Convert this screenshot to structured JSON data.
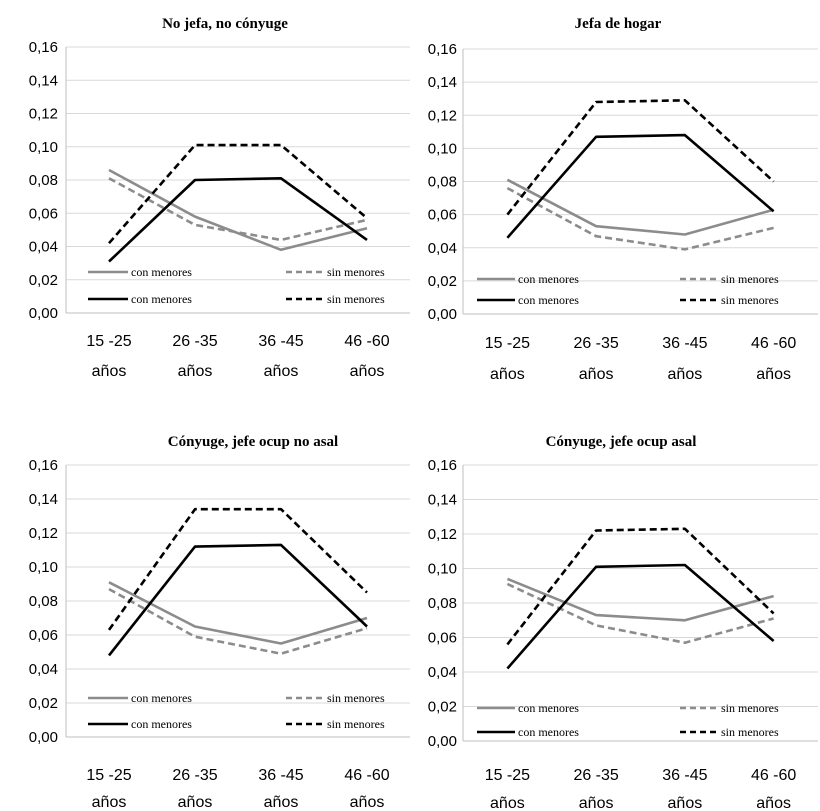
{
  "chart_data": [
    {
      "type": "line",
      "title": "No jefa, no cónyuge",
      "categories": [
        [
          "15 -25",
          "años"
        ],
        [
          "26 -35",
          "años"
        ],
        [
          "36 -45",
          "años"
        ],
        [
          "46 -60",
          "años"
        ]
      ],
      "ylim": [
        0,
        0.16
      ],
      "yticks": [
        "0,00",
        "0,02",
        "0,04",
        "0,06",
        "0,08",
        "0,10",
        "0,12",
        "0,14",
        "0,16"
      ],
      "grid": true,
      "legend_position": "bottom",
      "series": [
        {
          "name": "con menores",
          "color": "#8c8c8c",
          "dash": "solid",
          "values": [
            0.086,
            0.058,
            0.038,
            0.051
          ]
        },
        {
          "name": "sin menores",
          "color": "#8c8c8c",
          "dash": "dashed",
          "values": [
            0.081,
            0.053,
            0.044,
            0.056
          ]
        },
        {
          "name": "con menores",
          "color": "#000000",
          "dash": "solid",
          "values": [
            0.031,
            0.08,
            0.081,
            0.044
          ]
        },
        {
          "name": "sin menores",
          "color": "#000000",
          "dash": "dashed",
          "values": [
            0.042,
            0.101,
            0.101,
            0.057
          ]
        }
      ]
    },
    {
      "type": "line",
      "title": "Jefa de hogar",
      "categories": [
        [
          "15 -25",
          "años"
        ],
        [
          "26 -35",
          "años"
        ],
        [
          "36 -45",
          "años"
        ],
        [
          "46 -60",
          "años"
        ]
      ],
      "ylim": [
        0,
        0.16
      ],
      "yticks": [
        "0,00",
        "0,02",
        "0,04",
        "0,06",
        "0,08",
        "0,10",
        "0,12",
        "0,14",
        "0,16"
      ],
      "grid": true,
      "legend_position": "bottom",
      "series": [
        {
          "name": "con menores",
          "color": "#8c8c8c",
          "dash": "solid",
          "values": [
            0.081,
            0.053,
            0.048,
            0.063
          ]
        },
        {
          "name": "sin menores",
          "color": "#8c8c8c",
          "dash": "dashed",
          "values": [
            0.076,
            0.047,
            0.039,
            0.052
          ]
        },
        {
          "name": "con menores",
          "color": "#000000",
          "dash": "solid",
          "values": [
            0.046,
            0.107,
            0.108,
            0.062
          ]
        },
        {
          "name": "sin menores",
          "color": "#000000",
          "dash": "dashed",
          "values": [
            0.06,
            0.128,
            0.129,
            0.08
          ]
        }
      ]
    },
    {
      "type": "line",
      "title": "Cónyuge, jefe ocup no asal",
      "categories": [
        [
          "15 -25",
          "años"
        ],
        [
          "26 -35",
          "años"
        ],
        [
          "36 -45",
          "años"
        ],
        [
          "46 -60",
          "años"
        ]
      ],
      "ylim": [
        0,
        0.16
      ],
      "yticks": [
        "0,00",
        "0,02",
        "0,04",
        "0,06",
        "0,08",
        "0,10",
        "0,12",
        "0,14",
        "0,16"
      ],
      "grid": true,
      "legend_position": "bottom",
      "series": [
        {
          "name": "con menores",
          "color": "#8c8c8c",
          "dash": "solid",
          "values": [
            0.091,
            0.065,
            0.055,
            0.07
          ]
        },
        {
          "name": "sin menores",
          "color": "#8c8c8c",
          "dash": "dashed",
          "values": [
            0.087,
            0.059,
            0.049,
            0.064
          ]
        },
        {
          "name": "con menores",
          "color": "#000000",
          "dash": "solid",
          "values": [
            0.048,
            0.112,
            0.113,
            0.065
          ]
        },
        {
          "name": "sin menores",
          "color": "#000000",
          "dash": "dashed",
          "values": [
            0.063,
            0.134,
            0.134,
            0.085
          ]
        }
      ]
    },
    {
      "type": "line",
      "title": "Cónyuge, jefe ocup asal",
      "categories": [
        [
          "15 -25",
          "años"
        ],
        [
          "26 -35",
          "años"
        ],
        [
          "36 -45",
          "años"
        ],
        [
          "46 -60",
          "años"
        ]
      ],
      "ylim": [
        0,
        0.16
      ],
      "yticks": [
        "0,00",
        "0,02",
        "0,04",
        "0,06",
        "0,08",
        "0,10",
        "0,12",
        "0,14",
        "0,16"
      ],
      "grid": true,
      "legend_position": "bottom",
      "series": [
        {
          "name": "con menores",
          "color": "#8c8c8c",
          "dash": "solid",
          "values": [
            0.094,
            0.073,
            0.07,
            0.084
          ]
        },
        {
          "name": "sin menores",
          "color": "#8c8c8c",
          "dash": "dashed",
          "values": [
            0.091,
            0.067,
            0.057,
            0.071
          ]
        },
        {
          "name": "con menores",
          "color": "#000000",
          "dash": "solid",
          "values": [
            0.042,
            0.101,
            0.102,
            0.058
          ]
        },
        {
          "name": "sin menores",
          "color": "#000000",
          "dash": "dashed",
          "values": [
            0.056,
            0.122,
            0.123,
            0.074
          ]
        }
      ]
    }
  ]
}
